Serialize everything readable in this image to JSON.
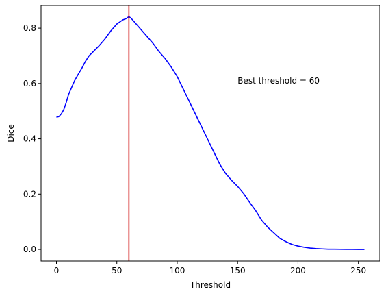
{
  "chart_data": {
    "type": "line",
    "title": "",
    "xlabel": "Threshold",
    "ylabel": "Dice",
    "xlim": [
      -12.75,
      267.75
    ],
    "ylim": [
      -0.042,
      0.882
    ],
    "xticks": [
      0,
      50,
      100,
      150,
      200,
      250
    ],
    "yticks": [
      0.0,
      0.2,
      0.4,
      0.6,
      0.8
    ],
    "xtick_labels": [
      "0",
      "50",
      "100",
      "150",
      "200",
      "250"
    ],
    "ytick_labels": [
      "0.0",
      "0.2",
      "0.4",
      "0.6",
      "0.8"
    ],
    "grid": false,
    "legend": "none",
    "series": [
      {
        "color": "#0000ff",
        "x": [
          0,
          2,
          4,
          6,
          8,
          10,
          12,
          15,
          18,
          21,
          24,
          27,
          30,
          35,
          40,
          45,
          50,
          55,
          58,
          60,
          62,
          65,
          70,
          75,
          80,
          85,
          90,
          95,
          100,
          105,
          110,
          115,
          120,
          125,
          130,
          135,
          140,
          145,
          150,
          155,
          160,
          165,
          170,
          175,
          180,
          185,
          190,
          195,
          200,
          205,
          210,
          215,
          220,
          225,
          230,
          235,
          240,
          245,
          250,
          255
        ],
        "y": [
          0.478,
          0.48,
          0.49,
          0.505,
          0.53,
          0.56,
          0.58,
          0.61,
          0.633,
          0.655,
          0.68,
          0.7,
          0.713,
          0.735,
          0.76,
          0.79,
          0.815,
          0.83,
          0.835,
          0.842,
          0.835,
          0.82,
          0.795,
          0.77,
          0.745,
          0.715,
          0.69,
          0.66,
          0.625,
          0.58,
          0.535,
          0.49,
          0.445,
          0.4,
          0.355,
          0.31,
          0.275,
          0.25,
          0.228,
          0.202,
          0.17,
          0.14,
          0.105,
          0.08,
          0.06,
          0.04,
          0.028,
          0.018,
          0.012,
          0.008,
          0.005,
          0.003,
          0.002,
          0.001,
          0.001,
          0.0005,
          0.0002,
          0.0001,
          0.0,
          0.0
        ]
      }
    ],
    "vline": {
      "x": 60,
      "color": "#cc0000"
    },
    "annotation": {
      "text": "Best threshold = 60",
      "x": 150,
      "y": 0.6
    }
  }
}
